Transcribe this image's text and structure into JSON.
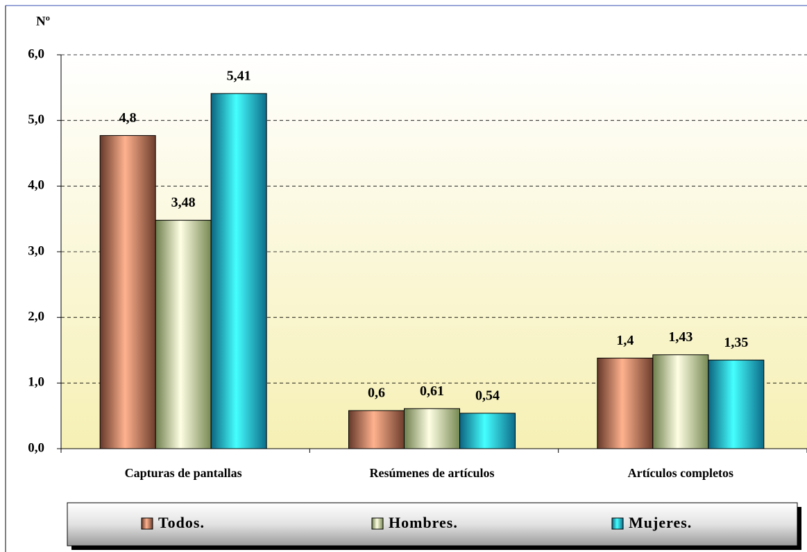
{
  "chart_data": {
    "type": "bar",
    "ylabel": "Nº",
    "categories": [
      "Capturas de pantallas",
      "Resúmenes de artículos",
      "Artículos completos"
    ],
    "series": [
      {
        "name": "Todos.",
        "color": "#b5654a",
        "values": [
          4.77,
          0.58,
          1.38
        ],
        "value_labels": [
          "4,8",
          "0,6",
          "1,4"
        ]
      },
      {
        "name": "Hombres.",
        "color": "#c6e58a",
        "values": [
          3.48,
          0.61,
          1.43
        ],
        "value_labels": [
          "3,48",
          "0,61",
          "1,43"
        ]
      },
      {
        "name": "Mujeres.",
        "color": "#14b4e6",
        "values": [
          5.41,
          0.54,
          1.35
        ],
        "value_labels": [
          "5,41",
          "0,54",
          "1,35"
        ]
      }
    ],
    "ylim": [
      0,
      6
    ],
    "yticks": [
      {
        "value": 0,
        "label": "0,0"
      },
      {
        "value": 1,
        "label": "1,0"
      },
      {
        "value": 2,
        "label": "2,0"
      },
      {
        "value": 3,
        "label": "3,0"
      },
      {
        "value": 4,
        "label": "4,0"
      },
      {
        "value": 5,
        "label": "5,0"
      },
      {
        "value": 6,
        "label": "6,0"
      }
    ],
    "grid": true,
    "legend": "bottom"
  }
}
